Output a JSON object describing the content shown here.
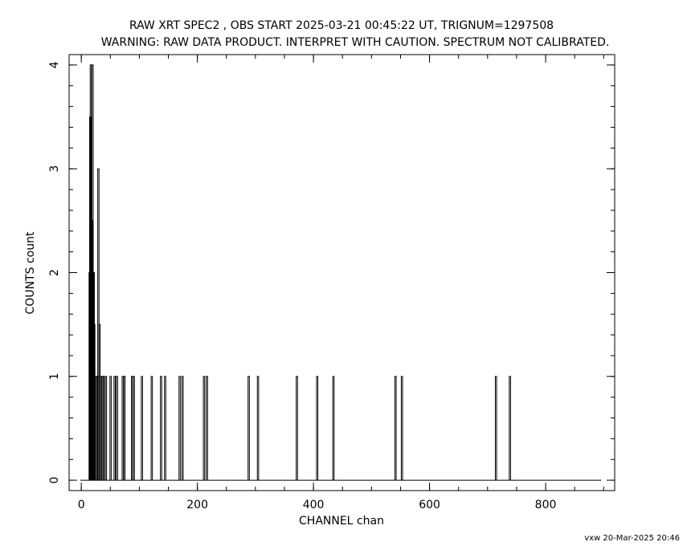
{
  "chart_data": {
    "type": "spike",
    "title": "RAW XRT SPEC2 , OBS START 2025-03-21 00:45:22 UT, TRIGNUM=1297508",
    "subtitle": "WARNING: RAW DATA PRODUCT. INTERPRET WITH CAUTION. SPECTRUM NOT CALIBRATED.",
    "x_label": "CHANNEL  chan",
    "y_label": "COUNTS  count",
    "footer": "vxw 20-Mar-2025 20:46",
    "x": [
      0,
      15,
      16,
      17,
      19,
      20,
      21,
      22,
      23,
      26,
      28,
      30,
      32,
      34,
      37,
      39,
      43,
      51,
      58,
      62,
      72,
      75,
      88,
      91,
      105,
      122,
      138,
      145,
      170,
      175,
      212,
      217,
      289,
      305,
      372,
      407,
      435,
      542,
      553,
      715,
      739,
      895
    ],
    "values": [
      0,
      2,
      3.5,
      4,
      2.5,
      4,
      2,
      2,
      1.5,
      1,
      1,
      3,
      1.5,
      1,
      1,
      1,
      1,
      1,
      1,
      1,
      1,
      1,
      1,
      1,
      1,
      1,
      1,
      1,
      1,
      1,
      1,
      1,
      1,
      1,
      1,
      1,
      1,
      1,
      1,
      1,
      1,
      0
    ],
    "color": "#000000",
    "xlim": [
      -21,
      919
    ],
    "ylim": [
      -0.1,
      4.1
    ],
    "xticks": [
      0,
      200,
      400,
      600,
      800
    ],
    "yticks": [
      0,
      1,
      2,
      3,
      4
    ]
  }
}
